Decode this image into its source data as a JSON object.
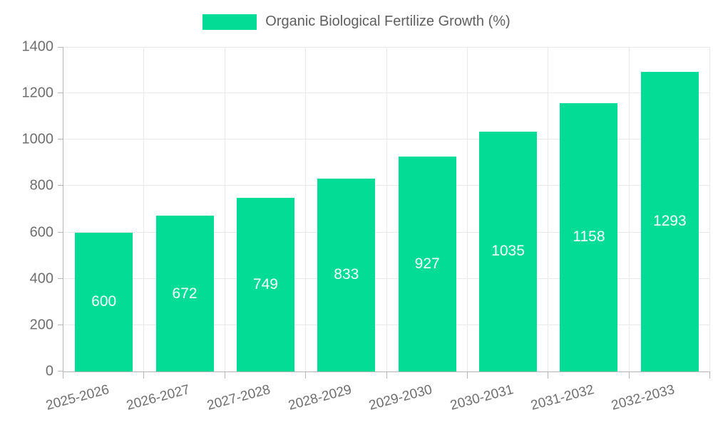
{
  "chart_data": {
    "type": "bar",
    "title": "",
    "series_name": "Organic Biological Fertilize Growth (%)",
    "categories": [
      "2025-2026",
      "2026-2027",
      "2027-2028",
      "2028-2029",
      "2029-2030",
      "2030-2031",
      "2031-2032",
      "2032-2033"
    ],
    "values": [
      600,
      672,
      749,
      833,
      927,
      1035,
      1158,
      1293
    ],
    "xlabel": "",
    "ylabel": "",
    "ylim": [
      0,
      1400
    ],
    "ytick_step": 200,
    "ytick_labels": [
      "0",
      "200",
      "400",
      "600",
      "800",
      "1000",
      "1200",
      "1400"
    ],
    "grid": true,
    "legend_position": "top-center",
    "x_label_rotation_deg": -15,
    "value_label_position": "inside-center",
    "colors": {
      "bar": "#02dc94",
      "value_label": "#ffffff",
      "axis_label": "#6e6e6e",
      "legend_label": "#5f5f5f",
      "grid": "#e9e9e9",
      "axis_line": "#b5b5b5",
      "background": "#ffffff"
    }
  }
}
